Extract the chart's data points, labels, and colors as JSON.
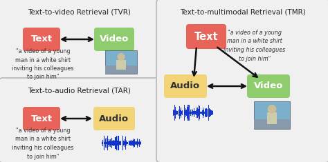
{
  "bg_color": "#e8e8e8",
  "tvr_title": "Text-to-video Retrieval (TVR)",
  "tar_title": "Text-to-audio Retrieval (TAR)",
  "tmr_title": "Text-to-multimodal Retrieval (TMR)",
  "text_box_color": "#e8635a",
  "video_box_color": "#8ecc6e",
  "audio_box_color": "#f2d476",
  "quote_tvr": "\"a video of a young\nman in a white shirt\ninviting his colleagues\nto join him\"",
  "quote_tar": "\"a video of a young\nman in a white shirt\ninviting his colleagues\nto join him\"",
  "quote_tmr": "\"a video of a young\nman in a white shirt\ninviting his colleagues\nto join him\"",
  "font_title": 7.5,
  "font_label": 9.5,
  "font_quote": 5.8,
  "arrow_color": "#111111",
  "border_color": "#bbbbbb",
  "panel_facecolor": "#f0f0f0"
}
